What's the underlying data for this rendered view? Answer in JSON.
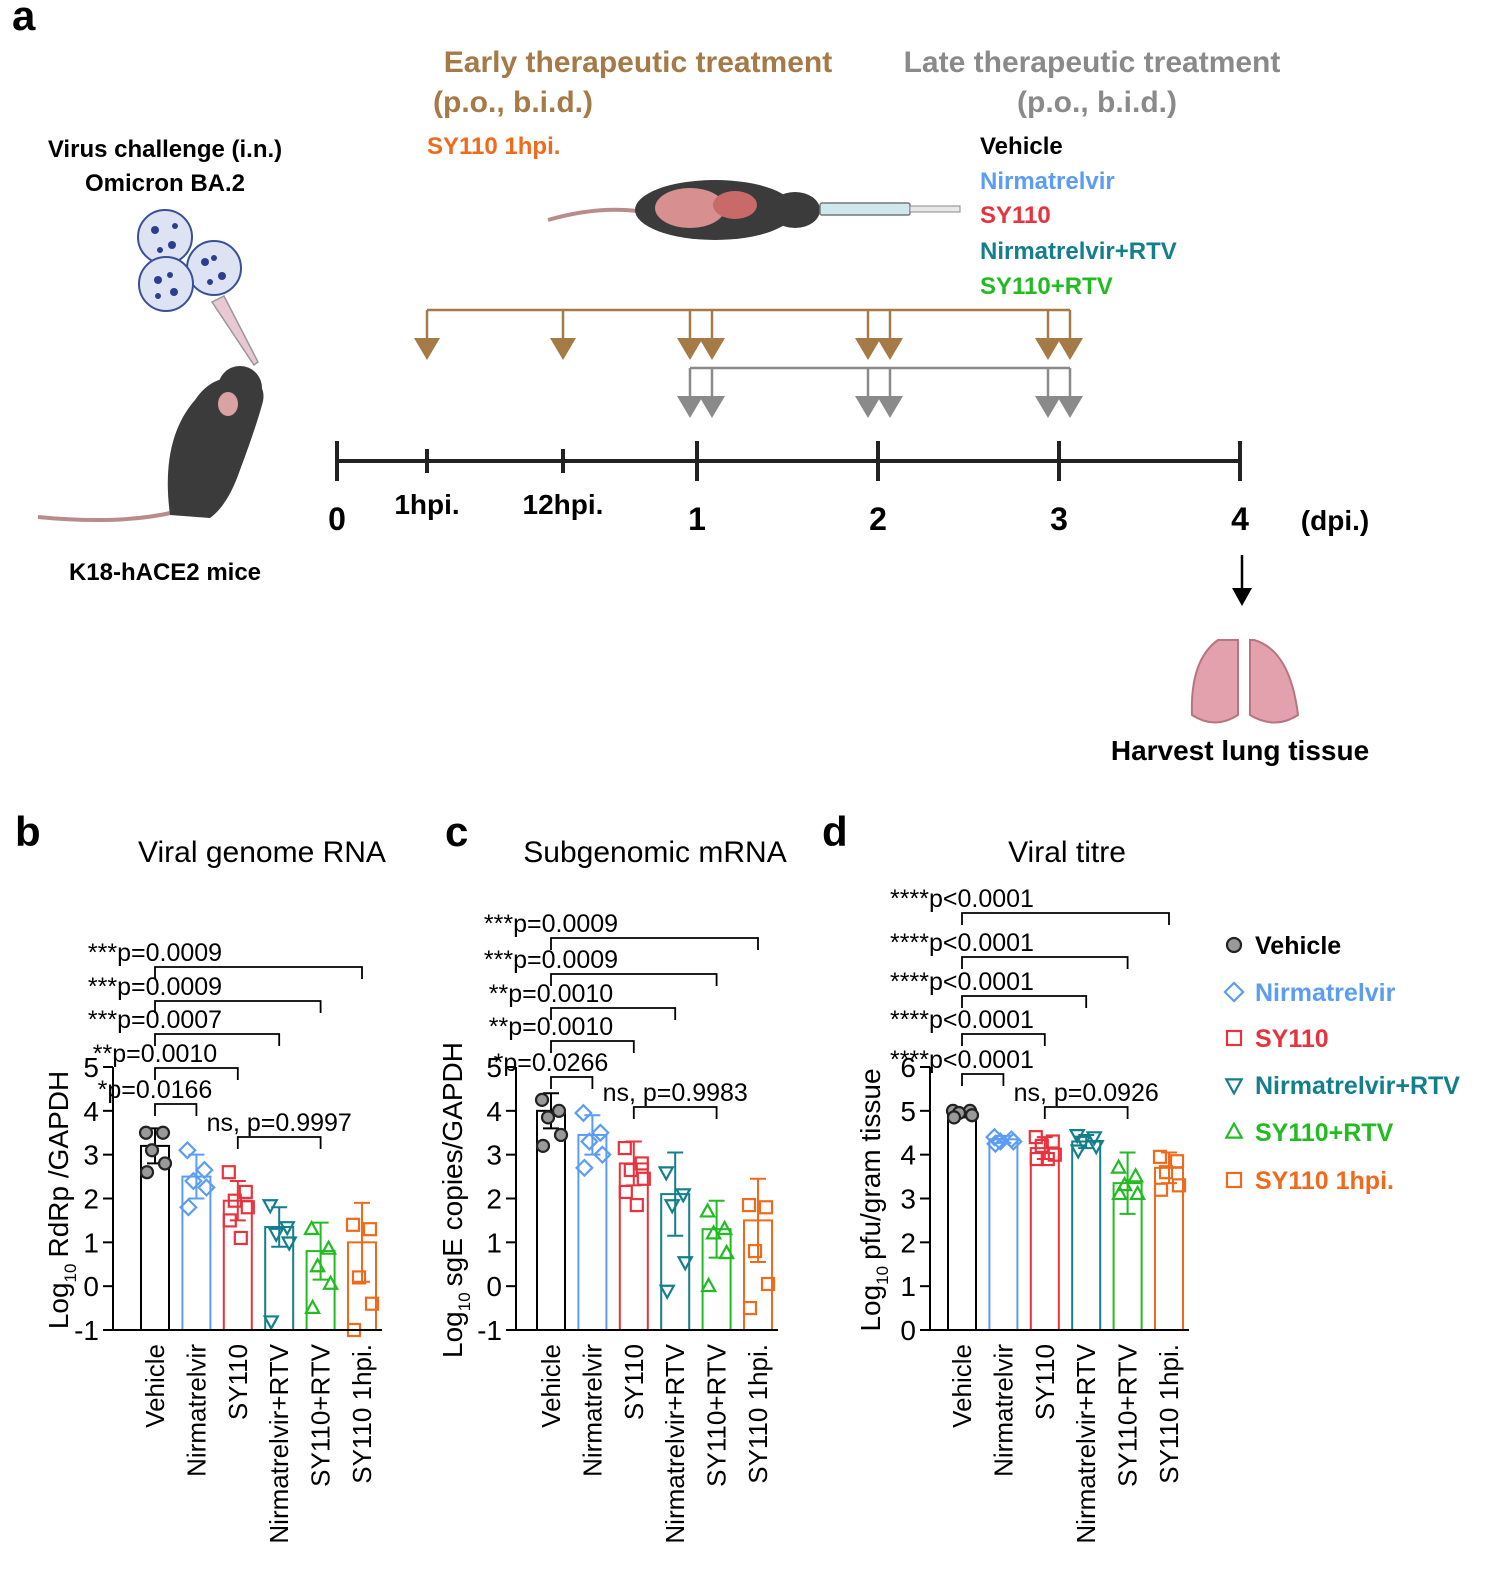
{
  "panel_a": {
    "label": "a",
    "challenge": [
      "Virus challenge (i.n.)",
      "Omicron BA.2"
    ],
    "mice": "K18-hACE2 mice",
    "early": [
      "Early therapeutic treatment",
      "(p.o., b.i.d.)"
    ],
    "early_group": "SY110 1hpi.",
    "late": [
      "Late therapeutic treatment",
      "(p.o., b.i.d.)"
    ],
    "late_groups": [
      "Vehicle",
      "Nirmatrelvir",
      "SY110",
      "Nirmatrelvir+RTV",
      "SY110+RTV"
    ],
    "timeline": [
      "0",
      "1hpi.",
      "12hpi.",
      "1",
      "2",
      "3",
      "4"
    ],
    "unit": "(dpi.)",
    "harvest": "Harvest lung tissue"
  },
  "chart_data": [
    {
      "type": "bar",
      "panel": "b",
      "title": "Viral genome RNA",
      "ylabel": [
        "Log",
        "10",
        "RdRp /GAPDH"
      ],
      "categories": [
        "Vehicle",
        "Nirmatrelvir",
        "SY110",
        "Nirmatrelvir+RTV",
        "SY110+RTV",
        "SY110 1hpi."
      ],
      "colors": [
        "#000000",
        "#5b9cf5",
        "#e8333e",
        "#137f8c",
        "#22bb22",
        "#f06a1c"
      ],
      "values": [
        3.2,
        2.5,
        1.95,
        1.35,
        0.8,
        1.0
      ],
      "errors": [
        0.4,
        0.5,
        0.45,
        0.45,
        0.65,
        0.9
      ],
      "points": [
        [
          3.5,
          3.5,
          3.1,
          2.8,
          2.6
        ],
        [
          3.1,
          2.65,
          2.4,
          2.25,
          1.8
        ],
        [
          2.6,
          2.15,
          1.95,
          1.8,
          1.5,
          1.1
        ],
        [
          1.85,
          1.35,
          1.2,
          1.0,
          -0.8
        ],
        [
          1.3,
          0.85,
          0.45,
          0.05,
          -0.5
        ],
        [
          1.4,
          1.3,
          0.2,
          -0.4,
          -1.0
        ]
      ],
      "ylim": [
        -1,
        5
      ],
      "yticks": [
        -1,
        0,
        1,
        2,
        3,
        4,
        5
      ],
      "annotations": [
        "***p=0.0009",
        "***p=0.0009",
        "***p=0.0007",
        "**p=0.0010",
        "*p=0.0166",
        "ns, p=0.9997"
      ]
    },
    {
      "type": "bar",
      "panel": "c",
      "title": "Subgenomic mRNA",
      "ylabel": [
        "Log",
        "10",
        "sgE copies/GAPDH"
      ],
      "categories": [
        "Vehicle",
        "Nirmatrelvir",
        "SY110",
        "Nirmatrelvir+RTV",
        "SY110+RTV",
        "SY110 1hpi."
      ],
      "colors": [
        "#000000",
        "#5b9cf5",
        "#e8333e",
        "#137f8c",
        "#22bb22",
        "#f06a1c"
      ],
      "values": [
        4.0,
        3.45,
        2.8,
        2.1,
        1.3,
        1.5
      ],
      "errors": [
        0.4,
        0.45,
        0.5,
        0.95,
        0.65,
        0.95
      ],
      "points": [
        [
          4.25,
          4.0,
          3.85,
          3.45,
          3.2
        ],
        [
          3.95,
          3.5,
          3.3,
          3.0,
          2.7
        ],
        [
          3.15,
          2.8,
          2.65,
          2.45,
          2.15,
          1.85
        ],
        [
          2.6,
          2.1,
          1.85,
          0.55,
          -0.1
        ],
        [
          1.7,
          1.3,
          1.2,
          0.75,
          0.0
        ],
        [
          1.85,
          1.8,
          0.8,
          0.05,
          -0.5
        ]
      ],
      "ylim": [
        -1,
        5
      ],
      "yticks": [
        -1,
        0,
        1,
        2,
        3,
        4,
        5
      ],
      "annotations": [
        "***p=0.0009",
        "***p=0.0009",
        "**p=0.0010",
        "**p=0.0010",
        "*p=0.0266",
        "ns, p=0.9983"
      ]
    },
    {
      "type": "bar",
      "panel": "d",
      "title": "Viral titre",
      "ylabel": [
        "Log",
        "10",
        "pfu/gram tissue"
      ],
      "categories": [
        "Vehicle",
        "Nirmatrelvir",
        "SY110",
        "Nirmatrelvir+RTV",
        "SY110+RTV",
        "SY110 1hpi."
      ],
      "colors": [
        "#000000",
        "#5b9cf5",
        "#e8333e",
        "#137f8c",
        "#22bb22",
        "#f06a1c"
      ],
      "values": [
        4.95,
        4.35,
        4.15,
        4.3,
        3.35,
        3.7
      ],
      "errors": [
        0.1,
        0.08,
        0.25,
        0.15,
        0.7,
        0.35
      ],
      "points": [
        [
          5.0,
          5.0,
          4.95,
          4.9,
          4.85
        ],
        [
          4.4,
          4.35,
          4.3,
          4.3,
          4.25
        ],
        [
          4.4,
          4.3,
          4.2,
          4.0,
          3.9,
          3.9
        ],
        [
          4.45,
          4.4,
          4.3,
          4.2,
          4.1
        ],
        [
          3.7,
          3.5,
          3.3,
          3.1,
          3.1
        ],
        [
          3.95,
          3.85,
          3.6,
          3.3,
          3.2
        ]
      ],
      "ylim": [
        0,
        6
      ],
      "yticks": [
        0,
        1,
        2,
        3,
        4,
        5,
        6
      ],
      "annotations": [
        "****p<0.0001",
        "****p<0.0001",
        "****p<0.0001",
        "****p<0.0001",
        "****p<0.0001",
        "ns, p=0.0926"
      ]
    }
  ]
}
